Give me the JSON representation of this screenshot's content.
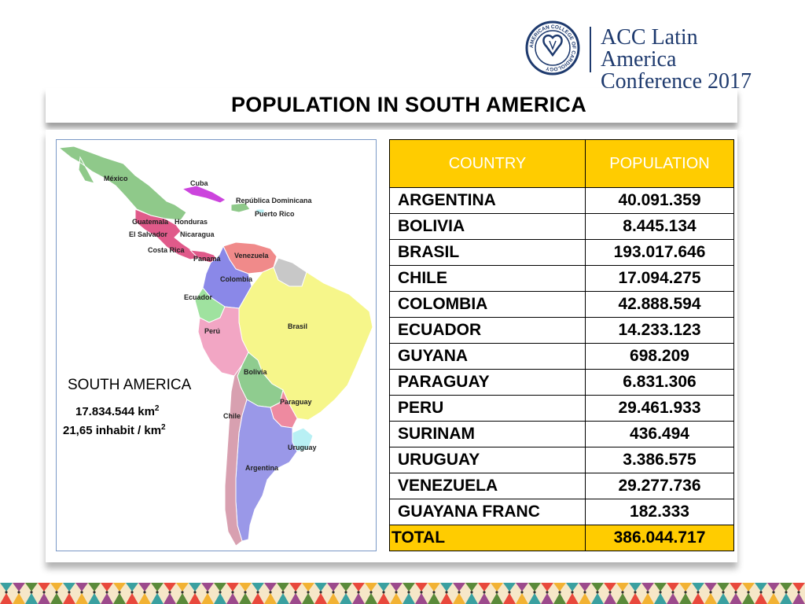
{
  "header": {
    "logo_seal_text": "AMERICAN COLLEGE OF CARDIOLOGY",
    "conference_line1": "ACC Latin America",
    "conference_line2": "Conference 2017"
  },
  "title": "POPULATION IN SOUTH AMERICA",
  "map": {
    "labels": {
      "mexico": "México",
      "cuba": "Cuba",
      "dominican_republic": "República Dominicana",
      "puerto_rico": "Puerto Rico",
      "guatemala": "Guatemala",
      "honduras": "Honduras",
      "el_salvador": "El Salvador",
      "nicaragua": "Nicaragua",
      "costa_rica": "Costa Rica",
      "panama": "Panamá",
      "venezuela": "Venezuela",
      "colombia": "Colombia",
      "ecuador": "Ecuador",
      "peru": "Perú",
      "brasil": "Brasil",
      "bolivia": "Bolivia",
      "paraguay": "Paraguay",
      "chile": "Chile",
      "uruguay": "Uruguay",
      "argentina": "Argentina"
    },
    "colors": {
      "mexico": "#8fc98a",
      "caribbean": "#cc44dd",
      "central": "#e05a8a",
      "venezuela": "#f08a8a",
      "colombia": "#8a88e8",
      "ecuador": "#9fe29f",
      "peru": "#f2a6c4",
      "brasil": "#f6f68a",
      "bolivia": "#8fcc8f",
      "paraguay": "#ee8aa0",
      "chile": "#d8a0b0",
      "argentina": "#9a98e8",
      "uruguay": "#b8f0f4",
      "guianas": "#c8c8c8"
    }
  },
  "region": {
    "heading": "SOUTH AMERICA",
    "area_value": "17.834.544 km",
    "area_sup": "2",
    "density_value": "21,65 inhabit / km",
    "density_sup": "2"
  },
  "table": {
    "headers": [
      "COUNTRY",
      "POPULATION"
    ],
    "rows": [
      {
        "country": "ARGENTINA",
        "population": "40.091.359"
      },
      {
        "country": "BOLIVIA",
        "population": "8.445.134"
      },
      {
        "country": "BRASIL",
        "population": "193.017.646"
      },
      {
        "country": "CHILE",
        "population": "17.094.275"
      },
      {
        "country": "COLOMBIA",
        "population": "42.888.594"
      },
      {
        "country": "ECUADOR",
        "population": "14.233.123"
      },
      {
        "country": "GUYANA",
        "population": "698.209"
      },
      {
        "country": "PARAGUAY",
        "population": "6.831.306"
      },
      {
        "country": "PERU",
        "population": "29.461.933"
      },
      {
        "country": "SURINAM",
        "population": "436.494"
      },
      {
        "country": "URUGUAY",
        "population": "3.386.575"
      },
      {
        "country": "VENEZUELA",
        "population": "29.277.736"
      },
      {
        "country": "GUAYANA FRANC",
        "population": "182.333"
      }
    ],
    "total_label": "TOTAL",
    "total_value": "386.044.717",
    "header_color": "#ffcc00"
  }
}
